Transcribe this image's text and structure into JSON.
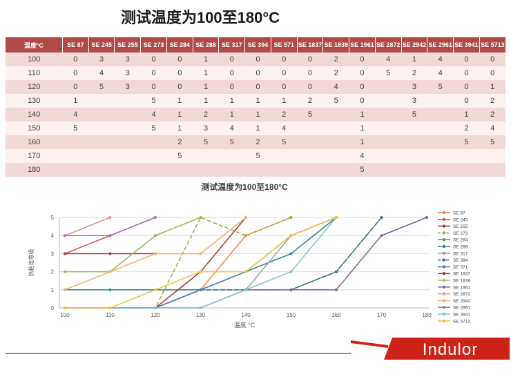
{
  "page_title": "测试温度为100至180°C",
  "colors": {
    "table_header_red": "#b04a46",
    "band_pink": "#f0d9d7",
    "band_light": "#faf1f0",
    "logo_red": "#ce2418",
    "divider_gray": "#8c8c8c"
  },
  "table": {
    "header": [
      "温度°C",
      "SE 87",
      "SE 245",
      "SE 255",
      "SE 273",
      "SE 284",
      "SE 288",
      "SE 317",
      "SE 394",
      "SE 571",
      "SE 1837",
      "SE 1839",
      "SE 1961",
      "SE 2872",
      "SE 2942",
      "SE 2961",
      "SE 3941",
      "SE 5713"
    ],
    "rows": [
      {
        "temp": "100",
        "values": [
          "0",
          "3",
          "3",
          "0",
          "0",
          "1",
          "0",
          "0",
          "0",
          "0",
          "2",
          "0",
          "4",
          "1",
          "4",
          "0",
          "0"
        ]
      },
      {
        "temp": "110",
        "values": [
          "0",
          "4",
          "3",
          "0",
          "0",
          "1",
          "0",
          "0",
          "0",
          "0",
          "2",
          "0",
          "5",
          "2",
          "4",
          "0",
          "0"
        ]
      },
      {
        "temp": "120",
        "values": [
          "0",
          "5",
          "3",
          "0",
          "0",
          "1",
          "0",
          "0",
          "0",
          "0",
          "4",
          "0",
          "",
          "3",
          "5",
          "0",
          "1"
        ]
      },
      {
        "temp": "130",
        "values": [
          "1",
          "",
          "",
          "5",
          "1",
          "1",
          "1",
          "1",
          "1",
          "2",
          "5",
          "0",
          "",
          "3",
          "",
          "0",
          "2"
        ]
      },
      {
        "temp": "140",
        "values": [
          "4",
          "",
          "",
          "4",
          "1",
          "2",
          "1",
          "1",
          "2",
          "5",
          "",
          "1",
          "",
          "5",
          "",
          "1",
          "2"
        ]
      },
      {
        "temp": "150",
        "values": [
          "5",
          "",
          "",
          "5",
          "1",
          "3",
          "4",
          "1",
          "4",
          "",
          "",
          "1",
          "",
          "",
          "",
          "2",
          "4"
        ]
      },
      {
        "temp": "160",
        "values": [
          "",
          "",
          "",
          "",
          "2",
          "5",
          "5",
          "2",
          "5",
          "",
          "",
          "1",
          "",
          "",
          "",
          "5",
          "5"
        ]
      },
      {
        "temp": "170",
        "values": [
          "",
          "",
          "",
          "",
          "5",
          "",
          "",
          "5",
          "",
          "",
          "",
          "4",
          "",
          "",
          "",
          "",
          ""
        ]
      },
      {
        "temp": "180",
        "values": [
          "",
          "",
          "",
          "",
          "",
          "",
          "",
          "",
          "",
          "",
          "",
          "5",
          "",
          "",
          "",
          "",
          ""
        ]
      }
    ]
  },
  "chart_data": {
    "type": "line",
    "title": "测试温度为100至180°C",
    "xlabel": "温度 °C",
    "ylabel": "热粘连等级",
    "x": [
      100,
      110,
      120,
      130,
      140,
      150,
      160,
      170,
      180
    ],
    "ylim": [
      0,
      5
    ],
    "grid": true,
    "legend_position": "right",
    "series": [
      {
        "name": "SE 87",
        "color": "#f28b3c",
        "dash": "",
        "values": [
          0,
          0,
          0,
          1,
          4,
          5,
          null,
          null,
          null
        ]
      },
      {
        "name": "SE 245",
        "color": "#e2504c",
        "dash": "",
        "values": [
          3,
          4,
          5,
          null,
          null,
          null,
          null,
          null,
          null
        ]
      },
      {
        "name": "SE 255",
        "color": "#96423e",
        "dash": "",
        "values": [
          3,
          3,
          3,
          null,
          null,
          null,
          null,
          null,
          null
        ]
      },
      {
        "name": "SE 273",
        "color": "#b0a943",
        "dash": "6,3",
        "values": [
          0,
          0,
          0,
          5,
          4,
          5,
          null,
          null,
          null
        ]
      },
      {
        "name": "SE 284",
        "color": "#5ba348",
        "dash": "",
        "values": [
          0,
          0,
          0,
          1,
          1,
          1,
          2,
          5,
          null
        ]
      },
      {
        "name": "SE 288",
        "color": "#2e8b8b",
        "dash": "",
        "values": [
          1,
          1,
          1,
          1,
          2,
          3,
          5,
          null,
          null
        ]
      },
      {
        "name": "SE 317",
        "color": "#9fa0a4",
        "dash": "",
        "values": [
          0,
          0,
          0,
          1,
          1,
          4,
          5,
          null,
          null
        ]
      },
      {
        "name": "SE 394",
        "color": "#3b6fa0",
        "dash": "7,3",
        "values": [
          0,
          0,
          0,
          1,
          1,
          1,
          2,
          5,
          null
        ]
      },
      {
        "name": "SE 571",
        "color": "#4f81bd",
        "dash": "",
        "values": [
          0,
          0,
          0,
          1,
          2,
          4,
          5,
          null,
          null
        ]
      },
      {
        "name": "SE 1837",
        "color": "#a33b38",
        "dash": "",
        "values": [
          0,
          0,
          0,
          2,
          5,
          null,
          null,
          null,
          null
        ]
      },
      {
        "name": "SE 1839",
        "color": "#9bbb59",
        "dash": "",
        "values": [
          2,
          2,
          4,
          5,
          null,
          null,
          null,
          null,
          null
        ]
      },
      {
        "name": "SE 1961",
        "color": "#8064a2",
        "dash": "",
        "values": [
          0,
          0,
          0,
          0,
          1,
          1,
          1,
          4,
          5
        ]
      },
      {
        "name": "SE 2872",
        "color": "#e79492",
        "dash": "",
        "values": [
          4,
          5,
          null,
          null,
          null,
          null,
          null,
          null,
          null
        ]
      },
      {
        "name": "SE 2942",
        "color": "#f2b16d",
        "dash": "",
        "values": [
          1,
          2,
          3,
          3,
          5,
          null,
          null,
          null,
          null
        ]
      },
      {
        "name": "SE 2961",
        "color": "#9e7cc1",
        "dash": "",
        "values": [
          4,
          4,
          5,
          null,
          null,
          null,
          null,
          null,
          null
        ]
      },
      {
        "name": "SE 3941",
        "color": "#7ec5d8",
        "dash": "",
        "values": [
          0,
          0,
          0,
          0,
          1,
          2,
          5,
          null,
          null
        ]
      },
      {
        "name": "SE 5713",
        "color": "#f5c242",
        "dash": "",
        "values": [
          0,
          0,
          1,
          2,
          2,
          4,
          5,
          null,
          null
        ]
      }
    ]
  },
  "logo": {
    "text": "Indulor"
  }
}
